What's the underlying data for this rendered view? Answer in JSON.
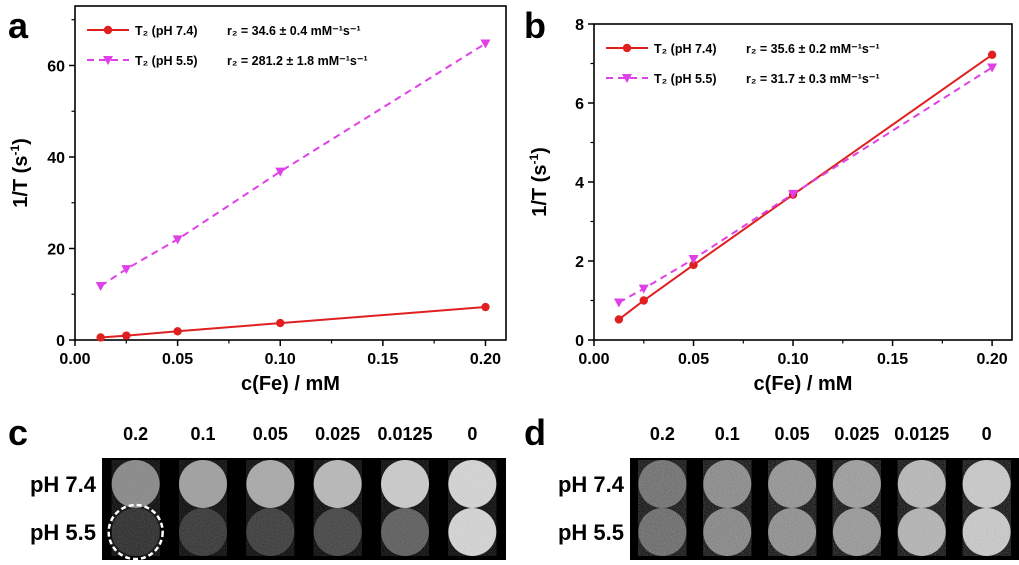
{
  "chart_data": [
    {
      "panel": "a",
      "type": "line",
      "xlabel": "c(Fe) / mM",
      "ylabel": "1/T (s",
      "ylabel_sup": "-1",
      "ylabel_tail": ")",
      "xlim": [
        0,
        0.21
      ],
      "ylim": [
        0,
        73
      ],
      "xticks": [
        0.0,
        0.05,
        0.1,
        0.15,
        0.2
      ],
      "xtick_labels": [
        "0.00",
        "0.05",
        "0.10",
        "0.15",
        "0.20"
      ],
      "yticks": [
        0,
        20,
        40,
        60
      ],
      "ytick_labels": [
        "0",
        "20",
        "40",
        "60"
      ],
      "legend": "top-left",
      "series": [
        {
          "name": "T₂ (pH 7.4)",
          "fit_label": "r₂ = 34.6 ± 0.4 mM⁻¹s⁻¹",
          "color": "#e02020",
          "marker": "circle",
          "line": "solid",
          "x": [
            0.0125,
            0.025,
            0.05,
            0.1,
            0.2
          ],
          "y": [
            0.55,
            0.95,
            1.9,
            3.7,
            7.2
          ]
        },
        {
          "name": "T₂ (pH 5.5)",
          "fit_label": "r₂ = 281.2 ± 1.8 mM⁻¹s⁻¹",
          "color": "#e040e8",
          "marker": "triangle-down",
          "line": "dashed",
          "x": [
            0.0125,
            0.025,
            0.05,
            0.1,
            0.2
          ],
          "y": [
            11.8,
            15.5,
            22.0,
            36.8,
            64.8
          ]
        }
      ]
    },
    {
      "panel": "b",
      "type": "line",
      "xlabel": "c(Fe) / mM",
      "ylabel": "1/T (s",
      "ylabel_sup": "-1",
      "ylabel_tail": ")",
      "xlim": [
        0,
        0.21
      ],
      "ylim": [
        0,
        8
      ],
      "xticks": [
        0.0,
        0.05,
        0.1,
        0.15,
        0.2
      ],
      "xtick_labels": [
        "0.00",
        "0.05",
        "0.10",
        "0.15",
        "0.20"
      ],
      "yticks": [
        0,
        2,
        4,
        6,
        8
      ],
      "ytick_labels": [
        "0",
        "2",
        "4",
        "6",
        "8"
      ],
      "legend": "top-left",
      "series": [
        {
          "name": "T₂ (pH 7.4)",
          "fit_label": "r₂ = 35.6 ± 0.2 mM⁻¹s⁻¹",
          "color": "#e02020",
          "marker": "circle",
          "line": "solid",
          "x": [
            0.0125,
            0.025,
            0.05,
            0.1,
            0.2
          ],
          "y": [
            0.52,
            1.0,
            1.9,
            3.68,
            7.22
          ]
        },
        {
          "name": "T₂ (pH 5.5)",
          "fit_label": "r₂ = 31.7 ± 0.3 mM⁻¹s⁻¹",
          "color": "#e040e8",
          "marker": "triangle-down",
          "line": "dashed",
          "x": [
            0.0125,
            0.025,
            0.05,
            0.1,
            0.2
          ],
          "y": [
            0.95,
            1.3,
            2.05,
            3.7,
            6.9
          ]
        }
      ]
    }
  ],
  "mri_panels": [
    {
      "panel": "c",
      "columns": [
        "0.2",
        "0.1",
        "0.05",
        "0.025",
        "0.0125",
        "0"
      ],
      "rows": [
        {
          "label": "pH 7.4",
          "intensity": [
            0.52,
            0.62,
            0.66,
            0.72,
            0.8,
            0.84
          ],
          "noise": 0.3
        },
        {
          "label": "pH 5.5",
          "intensity": [
            0.14,
            0.18,
            0.2,
            0.24,
            0.34,
            0.84
          ],
          "noise": 0.3
        }
      ],
      "highlight": {
        "row": 1,
        "col": 0,
        "style": "dashed white circle"
      }
    },
    {
      "panel": "d",
      "columns": [
        "0.2",
        "0.1",
        "0.05",
        "0.025",
        "0.0125",
        "0"
      ],
      "rows": [
        {
          "label": "pH 7.4",
          "intensity": [
            0.4,
            0.52,
            0.56,
            0.6,
            0.72,
            0.8
          ],
          "noise": 0.45
        },
        {
          "label": "pH 5.5",
          "intensity": [
            0.38,
            0.5,
            0.54,
            0.58,
            0.7,
            0.8
          ],
          "noise": 0.45
        }
      ]
    }
  ]
}
